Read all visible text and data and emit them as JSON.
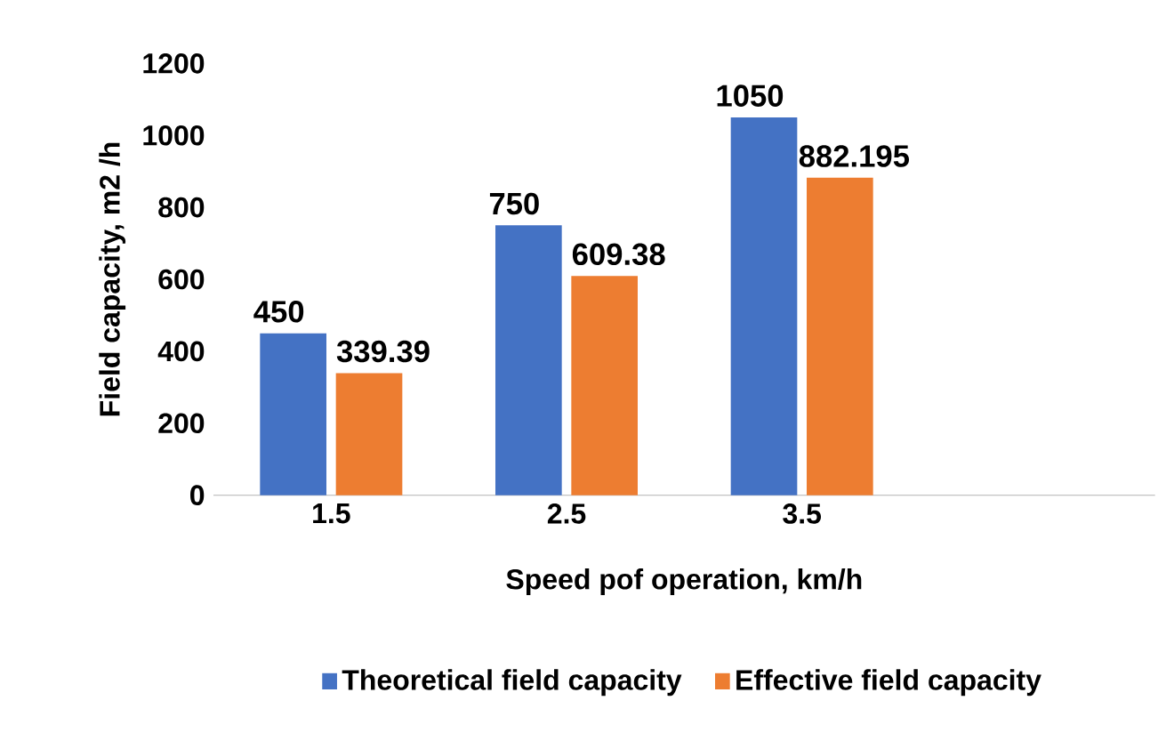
{
  "chart_data": {
    "type": "bar",
    "xlabel": "Speed pof operation, km/h",
    "ylabel": "Field capacity, m2 /h",
    "categories": [
      "1.5",
      "2.5",
      "3.5",
      null
    ],
    "series": [
      {
        "name": "Theoretical field capacity",
        "color": "#4472c4",
        "values": [
          450,
          750,
          1050,
          null
        ]
      },
      {
        "name": "Effective field capacity",
        "color": "#ed7d31",
        "values": [
          339.39,
          609.38,
          882.195,
          null
        ]
      }
    ],
    "ylim": [
      0,
      1200
    ],
    "yticks": [
      0,
      200,
      400,
      600,
      800,
      1000,
      1200
    ],
    "data_labels": true,
    "legend": "bottom",
    "grid": false
  }
}
